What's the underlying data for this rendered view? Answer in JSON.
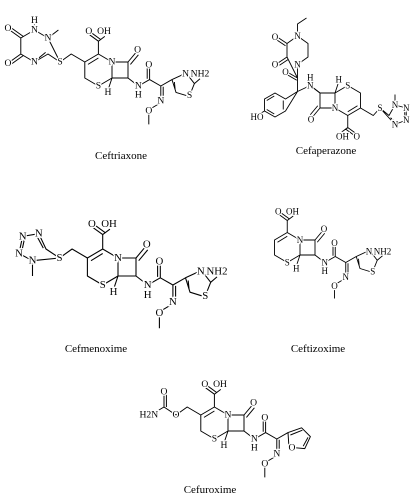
{
  "molecules": [
    {
      "name": "Ceftriaxone",
      "labels": [
        "O",
        "OH",
        "N",
        "S",
        "H",
        "O",
        "N",
        "H",
        "O",
        "N",
        "O",
        "N",
        "S",
        "NH2",
        "S",
        "N",
        "N",
        "N",
        "H",
        "O",
        "O"
      ]
    },
    {
      "name": "Cefaperazone",
      "labels": [
        "O",
        "OH",
        "N",
        "S",
        "H",
        "O",
        "N",
        "H",
        "S",
        "N",
        "N",
        "N",
        "N",
        "O",
        "N",
        "N",
        "O",
        "O",
        "HO"
      ]
    },
    {
      "name": "Cefmenoxime",
      "labels": [
        "O",
        "OH",
        "N",
        "S",
        "H",
        "O",
        "N",
        "H",
        "O",
        "N",
        "O",
        "N",
        "S",
        "NH2",
        "S",
        "N",
        "N",
        "N",
        "N"
      ]
    },
    {
      "name": "Ceftizoxime",
      "labels": [
        "O",
        "OH",
        "N",
        "S",
        "H",
        "O",
        "N",
        "H",
        "O",
        "N",
        "O",
        "N",
        "S",
        "NH2"
      ]
    },
    {
      "name": "Cefuroxime",
      "labels": [
        "O",
        "OH",
        "N",
        "S",
        "H",
        "O",
        "N",
        "H",
        "O",
        "N",
        "O",
        "O",
        "O",
        "O",
        "H2N"
      ]
    }
  ]
}
